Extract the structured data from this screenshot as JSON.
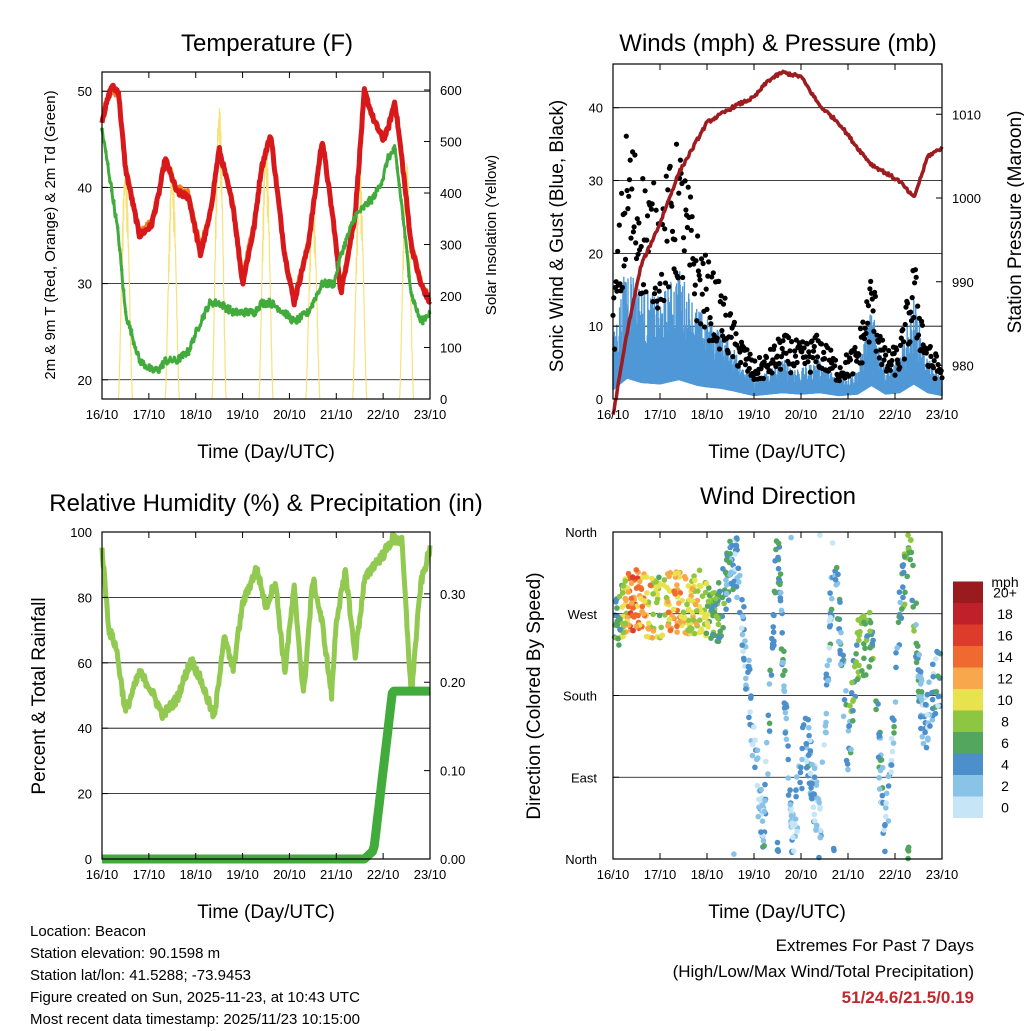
{
  "colors": {
    "temp2m": "#d7191c",
    "temp9m": "#f57c20",
    "dewpoint": "#41ab3c",
    "solar": "#f6e27a",
    "wind": "#4f98d6",
    "gust": "#000000",
    "pressure": "#9e1b20",
    "rh": "#92c950",
    "precip": "#41ab3c",
    "extremes": "#c1272d"
  },
  "charts": {
    "temperature": {
      "title": "Temperature (F)",
      "xlabel": "Time (Day/UTC)",
      "ylabel_left": "2m & 9m T (Red, Orange) & 2m Td (Green)",
      "ylabel_right": "Solar Insolation (Yellow)",
      "yticks_left": [
        "20",
        "30",
        "40",
        "50"
      ],
      "yticks_right": [
        "0",
        "100",
        "200",
        "300",
        "400",
        "500",
        "600"
      ]
    },
    "winds": {
      "title": "Winds (mph) & Pressure (mb)",
      "xlabel": "Time (Day/UTC)",
      "ylabel_left": "Sonic Wind & Gust (Blue, Black)",
      "ylabel_right": "Station Pressure (Maroon)",
      "yticks_left": [
        "0",
        "10",
        "20",
        "30",
        "40"
      ],
      "yticks_right": [
        "980",
        "990",
        "1000",
        "1010"
      ]
    },
    "humidity": {
      "title": "Relative Humidity (%) & Precipitation (in)",
      "xlabel": "Time (Day/UTC)",
      "ylabel_left": "Percent & Total Rainfall",
      "yticks_left": [
        "0",
        "20",
        "40",
        "60",
        "80",
        "100"
      ],
      "yticks_right": [
        "0.00",
        "0.10",
        "0.20",
        "0.30"
      ]
    },
    "direction": {
      "title": "Wind Direction",
      "xlabel": "Time (Day/UTC)",
      "ylabel_left": "Direction (Colored By Speed)",
      "yticks_left": [
        "North",
        "East",
        "South",
        "West",
        "North"
      ],
      "legend_title": "mph",
      "legend_labels": [
        "0",
        "2",
        "4",
        "6",
        "8",
        "10",
        "12",
        "14",
        "16",
        "18",
        "20+"
      ],
      "legend_colors": [
        "#c6e5f6",
        "#8ac3e8",
        "#4c8fcb",
        "#52a65e",
        "#8dc641",
        "#e7e24e",
        "#f8a74c",
        "#f0692f",
        "#dd3b2b",
        "#c0202a",
        "#991b1e"
      ]
    }
  },
  "x_ticks": [
    "16/10",
    "17/10",
    "18/10",
    "19/10",
    "20/10",
    "21/10",
    "22/10",
    "23/10"
  ],
  "footer": {
    "location": "Location: Beacon",
    "elevation": "Station elevation: 90.1598 m",
    "latlon": "Station lat/lon: 41.5288; -73.9453",
    "created": "Figure created on Sun, 2025-11-23, at 10:43 UTC",
    "latest": "Most recent data timestamp: 2025/11/23 10:15:00"
  },
  "extremes": {
    "line1": "Extremes For Past 7 Days",
    "line2": "(High/Low/Max Wind/Total Precipitation)",
    "values": "51/24.6/21.5/0.19"
  },
  "chart_data": [
    {
      "type": "line",
      "title": "Temperature (F)",
      "x_days": [
        0,
        0.2,
        0.35,
        0.5,
        0.8,
        1.05,
        1.2,
        1.35,
        1.6,
        1.85,
        2.1,
        2.3,
        2.5,
        2.8,
        3.0,
        3.25,
        3.4,
        3.6,
        3.9,
        4.1,
        4.4,
        4.7,
        4.95,
        5.1,
        5.4,
        5.6,
        5.8,
        6.0,
        6.1,
        6.25,
        6.4,
        6.6,
        6.8,
        7.0
      ],
      "series": [
        {
          "name": "2m T",
          "values": [
            47,
            50.5,
            50,
            42,
            35,
            36,
            39,
            43,
            39.5,
            39,
            33,
            37,
            44,
            38,
            30,
            36,
            42,
            45.5,
            33,
            28,
            34,
            45,
            36,
            29,
            37,
            50,
            47,
            45,
            46,
            49,
            43,
            34,
            30,
            28
          ]
        },
        {
          "name": "9m T",
          "values": [
            47.5,
            50,
            49.5,
            42.5,
            35.5,
            36.5,
            39.5,
            42.5,
            40,
            39.5,
            34,
            37.5,
            43.5,
            38.5,
            31,
            36.5,
            41.5,
            45,
            33.5,
            28.5,
            34.5,
            44.5,
            36.5,
            29.5,
            37.5,
            49.5,
            47,
            45.5,
            46,
            48.5,
            43,
            34.5,
            30.5,
            28.5
          ]
        },
        {
          "name": "2m Td",
          "values": [
            46,
            40,
            35,
            27,
            22,
            21,
            21,
            22,
            22,
            23,
            26,
            28,
            28,
            27,
            27,
            27,
            28,
            28,
            27,
            26,
            27,
            30,
            30,
            33,
            37,
            38,
            39,
            41,
            43,
            44,
            38,
            29,
            26,
            27
          ]
        },
        {
          "name": "Solar Insolation",
          "axis": "right",
          "days": [
            0,
            1,
            2,
            3,
            4,
            5,
            6
          ],
          "peaks": [
            460,
            460,
            580,
            500,
            400,
            450,
            470
          ]
        }
      ]
    },
    {
      "type": "scatter",
      "title": "Winds (mph) & Pressure (mb)",
      "x_days": [
        0,
        0.3,
        0.6,
        1.0,
        1.4,
        1.8,
        2.0,
        2.3,
        2.6,
        3.0,
        3.3,
        3.6,
        4.0,
        4.4,
        4.8,
        5.2,
        5.5,
        5.8,
        6.1,
        6.4,
        6.7,
        7.0
      ],
      "series": [
        {
          "name": "Sonic Wind",
          "values": [
            6,
            14,
            11,
            10,
            13,
            9,
            8,
            7,
            5,
            2,
            3,
            4,
            3,
            4,
            2,
            3,
            9,
            3,
            4,
            10,
            4,
            2
          ]
        },
        {
          "name": "Gust",
          "values": [
            10,
            30,
            25,
            22,
            28,
            18,
            15,
            12,
            8,
            4,
            5,
            7,
            6,
            7,
            4,
            6,
            14,
            5,
            6,
            15,
            6,
            4
          ]
        },
        {
          "name": "Station Pressure",
          "axis": "right",
          "values": [
            974,
            984,
            992,
            997,
            1003,
            1007,
            1009,
            1010,
            1011,
            1012,
            1014,
            1015,
            1014.5,
            1011,
            1009,
            1006,
            1004,
            1003,
            1002,
            1000,
            1005,
            1006
          ]
        }
      ],
      "ylim": [
        0,
        46
      ],
      "ylim_right": [
        976,
        1016
      ]
    },
    {
      "type": "line",
      "title": "Relative Humidity (%) & Precipitation (in)",
      "x_days": [
        0,
        0.15,
        0.3,
        0.5,
        0.8,
        1.0,
        1.3,
        1.6,
        1.9,
        2.1,
        2.4,
        2.6,
        2.8,
        3.0,
        3.3,
        3.5,
        3.7,
        3.9,
        4.1,
        4.3,
        4.5,
        4.7,
        4.9,
        5.0,
        5.2,
        5.4,
        5.6,
        5.8,
        6.0,
        6.2,
        6.4,
        6.6,
        6.8,
        7.0
      ],
      "series": [
        {
          "name": "Relative Humidity",
          "values": [
            95,
            70,
            65,
            45,
            57,
            53,
            44,
            49,
            61,
            55,
            43,
            68,
            58,
            78,
            89,
            77,
            85,
            57,
            83,
            50,
            86,
            72,
            50,
            73,
            88,
            62,
            85,
            90,
            93,
            98,
            97,
            50,
            84,
            95
          ]
        },
        {
          "name": "Total Precipitation",
          "axis": "right",
          "values": [
            0,
            0,
            0,
            0,
            0,
            0,
            0,
            0,
            0,
            0,
            0,
            0,
            0,
            0,
            0,
            0,
            0,
            0,
            0,
            0,
            0,
            0,
            0,
            0,
            0,
            0,
            0,
            0.01,
            0.1,
            0.19,
            0.19,
            0.19,
            0.19,
            0.19
          ]
        }
      ],
      "ylim": [
        0,
        100
      ],
      "ylim_right": [
        0,
        0.37
      ]
    },
    {
      "type": "scatter",
      "title": "Wind Direction",
      "x_days": [
        0.1,
        0.4,
        0.7,
        1.0,
        1.3,
        1.6,
        1.9,
        2.2,
        2.6,
        3.0,
        3.2,
        3.5,
        3.8,
        4.1,
        4.4,
        4.7,
        5.0,
        5.2,
        5.5,
        5.8,
        6.1,
        6.3,
        6.6,
        6.9
      ],
      "series": [
        {
          "name": "Direction (deg)",
          "values": [
            260,
            285,
            280,
            275,
            285,
            280,
            285,
            260,
            340,
            130,
            20,
            355,
            10,
            140,
            30,
            350,
            120,
            230,
            240,
            20,
            270,
            355,
            140,
            200
          ]
        },
        {
          "name": "Speed (mph)",
          "values": [
            6,
            14,
            12,
            8,
            13,
            10,
            9,
            6,
            3,
            2,
            3,
            5,
            2,
            3,
            2,
            3,
            4,
            7,
            6,
            2,
            4,
            8,
            2,
            3
          ]
        }
      ],
      "ylim": [
        0,
        360
      ]
    }
  ]
}
